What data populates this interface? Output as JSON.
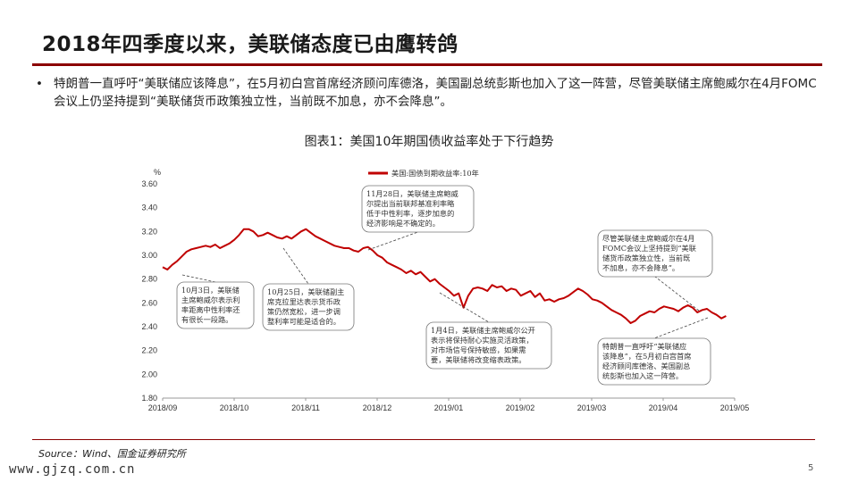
{
  "header": {
    "title": "2018年四季度以来，美联储态度已由鹰转鸽",
    "bullet": "特朗普一直呼吁“美联储应该降息”，在5月初白宫首席经济顾问库德洛，美国副总统彭斯也加入了这一阵营，尽管美联储主席鲍威尔在4月FOMC会议上仍坚持提到“美联储货币政策独立性，当前既不加息，亦不会降息”。"
  },
  "chart_title": "图表1：美国10年期国债收益率处于下行趋势",
  "footer": {
    "source": "Source：Wind、国金证券研究所",
    "watermark": "www.gjzq.com.cn",
    "page": "5"
  },
  "colors": {
    "accent": "#8b0000",
    "line": "#c00000"
  },
  "chart_data": {
    "type": "line",
    "title": "",
    "ylabel": "%",
    "xlabel": "",
    "ylim": [
      1.8,
      3.6
    ],
    "yticks": [
      "3.60",
      "3.40",
      "3.20",
      "3.00",
      "2.80",
      "2.60",
      "2.40",
      "2.20",
      "2.00",
      "1.80"
    ],
    "xticks": [
      "2018/09",
      "2018/10",
      "2018/11",
      "2018/12",
      "2019/01",
      "2019/02",
      "2019/03",
      "2019/04",
      "2019/05"
    ],
    "legend": "top-left",
    "series": [
      {
        "name": "美国:国债到期收益率:10年",
        "values": [
          2.9,
          2.88,
          2.92,
          2.95,
          2.99,
          3.03,
          3.05,
          3.06,
          3.07,
          3.08,
          3.07,
          3.09,
          3.06,
          3.08,
          3.1,
          3.13,
          3.17,
          3.22,
          3.22,
          3.2,
          3.16,
          3.17,
          3.19,
          3.17,
          3.15,
          3.14,
          3.16,
          3.14,
          3.17,
          3.2,
          3.22,
          3.19,
          3.16,
          3.14,
          3.12,
          3.1,
          3.08,
          3.07,
          3.06,
          3.06,
          3.04,
          3.03,
          3.06,
          3.07,
          3.04,
          3.0,
          2.98,
          2.94,
          2.92,
          2.9,
          2.88,
          2.85,
          2.87,
          2.84,
          2.86,
          2.82,
          2.78,
          2.8,
          2.76,
          2.73,
          2.7,
          2.66,
          2.68,
          2.56,
          2.66,
          2.72,
          2.73,
          2.72,
          2.7,
          2.75,
          2.73,
          2.74,
          2.7,
          2.72,
          2.71,
          2.66,
          2.68,
          2.7,
          2.65,
          2.68,
          2.62,
          2.63,
          2.61,
          2.63,
          2.64,
          2.66,
          2.69,
          2.72,
          2.7,
          2.67,
          2.63,
          2.62,
          2.6,
          2.57,
          2.54,
          2.52,
          2.5,
          2.47,
          2.43,
          2.45,
          2.49,
          2.51,
          2.53,
          2.52,
          2.55,
          2.57,
          2.56,
          2.55,
          2.53,
          2.56,
          2.58,
          2.56,
          2.52,
          2.54,
          2.55,
          2.52,
          2.5,
          2.47,
          2.49
        ]
      }
    ],
    "annotations": [
      {
        "lines": [
          "10月3日，美联储",
          "主席鲍威尔表示利",
          "率距离中性利率还",
          "有很长一段路。"
        ]
      },
      {
        "lines": [
          "10月25日，美联储副主",
          "席克拉里达表示货币政",
          "策仍然宽松，进一步调",
          "整利率可能是适合的。"
        ]
      },
      {
        "lines": [
          "11月28日，美联储主席鲍威",
          "尔提出当前联邦基准利率略",
          "低于中性利率，逐步加息的",
          "经济影响是不确定的。"
        ]
      },
      {
        "lines": [
          "1月4日，美联储主席鲍威尔公开",
          "表示将保持耐心实施灵活政策，",
          "对市场信号保持敏感，如果需",
          "要，美联储将改变缩表政策。"
        ]
      },
      {
        "lines": [
          "尽管美联储主席鲍威尔在4月",
          "FOMC会议上坚持提到“美联",
          "储货币政策独立性，当前既",
          "不加息，亦不会降息”。"
        ]
      },
      {
        "lines": [
          "特朗普一直呼吁“美联储应",
          "该降息”，在5月初白宫首席",
          "经济顾问库德洛、美国副总",
          "统彭斯也加入这一阵营。"
        ]
      }
    ]
  }
}
